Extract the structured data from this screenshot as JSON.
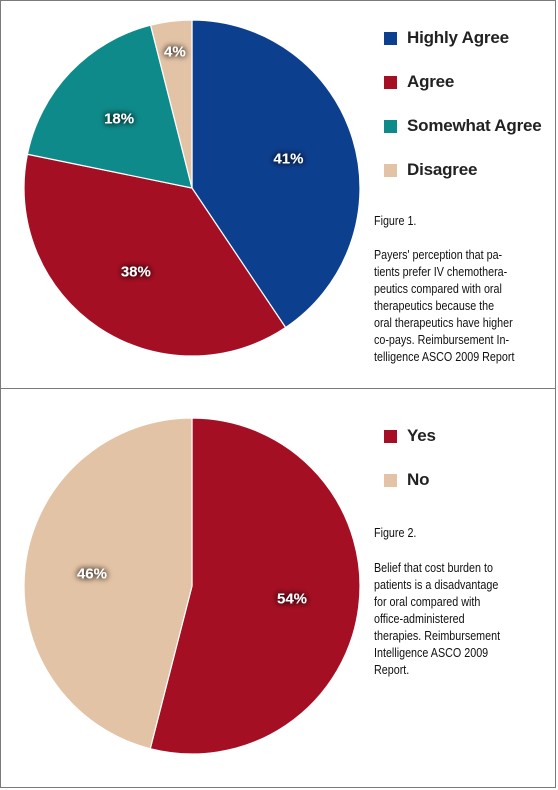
{
  "figure1": {
    "title": "Figure 1.",
    "caption": "Payers' perception that patients prefer IV chemotherapeutics compared with oral therapeutics because the oral therapeutics have higher co-pays. Reimbursement Intelligence ASCO 2009 Report",
    "caption_lines": [
      "Payers' perception that pa-",
      "tients prefer IV chemothera-",
      "peutics compared with oral",
      "therapeutics because the",
      "oral therapeutics have higher",
      "co-pays. Reimbursement In-",
      "telligence ASCO 2009 Report"
    ]
  },
  "figure2": {
    "title": "Figure 2.",
    "caption": "Belief that cost burden to patients is a disadvantage for oral compared with office-administered therapies. Reimbursement Intelligence ASCO 2009 Report.",
    "caption_lines": [
      "Belief that cost burden to",
      "patients is a disadvantage",
      "for oral compared with",
      "office-administered",
      "therapies. Reimbursement",
      "Intelligence ASCO 2009",
      "Report."
    ]
  },
  "chart_data": [
    {
      "type": "pie",
      "categories": [
        "Highly Agree",
        "Agree",
        "Somewhat Agree",
        "Disagree"
      ],
      "values": [
        41,
        38,
        18,
        4
      ],
      "labels": [
        "41%",
        "38%",
        "18%",
        "4%"
      ],
      "colors": [
        "#0d3f8f",
        "#a50f23",
        "#0e8a8a",
        "#e3c3a6"
      ],
      "legend_position": "right"
    },
    {
      "type": "pie",
      "categories": [
        "Yes",
        "No"
      ],
      "values": [
        54,
        46
      ],
      "labels": [
        "54%",
        "46%"
      ],
      "colors": [
        "#a50f23",
        "#e3c3a6"
      ],
      "legend_position": "right"
    }
  ]
}
